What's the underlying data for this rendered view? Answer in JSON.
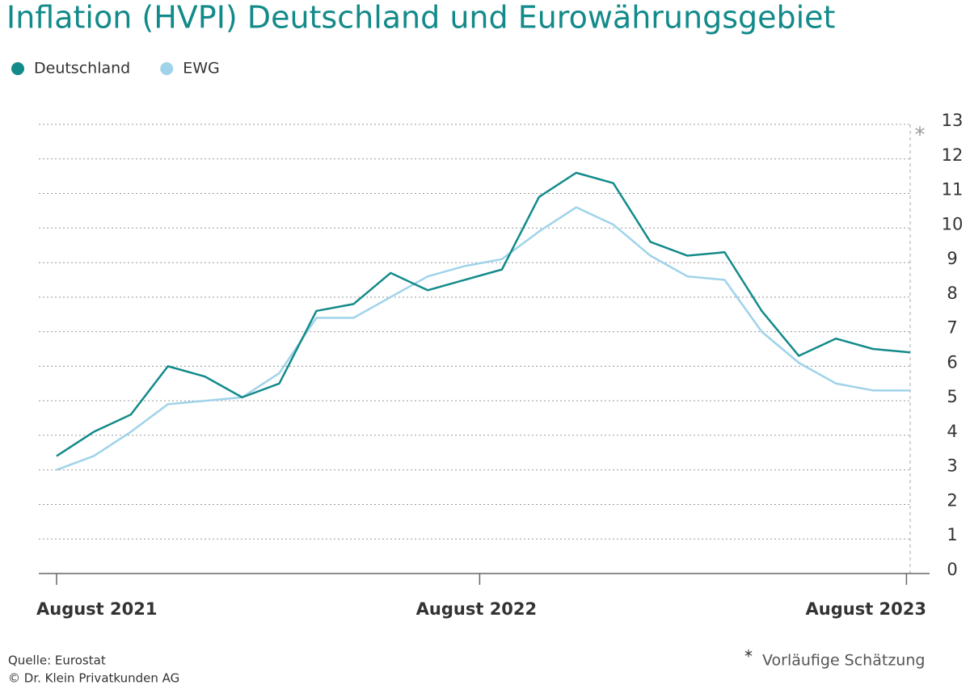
{
  "chart_data": {
    "type": "line",
    "title": "Inflation (HVPI) Deutschland und Eurowährungsgebiet",
    "x": [
      0,
      1,
      2,
      3,
      4,
      5,
      6,
      7,
      8,
      9,
      10,
      11,
      12,
      13,
      14,
      15,
      16,
      17,
      18,
      19,
      20,
      21,
      22,
      23
    ],
    "series": [
      {
        "name": "Deutschland",
        "color": "#138a8a",
        "values": [
          3.4,
          4.1,
          4.6,
          6.0,
          5.7,
          5.1,
          5.5,
          7.6,
          7.8,
          8.7,
          8.2,
          8.5,
          8.8,
          10.9,
          11.6,
          11.3,
          9.6,
          9.2,
          9.3,
          7.6,
          6.3,
          6.8,
          6.5,
          6.4
        ]
      },
      {
        "name": "EWG",
        "color": "#9fd3ea",
        "values": [
          3.0,
          3.4,
          4.1,
          4.9,
          5.0,
          5.1,
          5.8,
          7.4,
          7.4,
          8.0,
          8.6,
          8.9,
          9.1,
          9.9,
          10.6,
          10.1,
          9.2,
          8.6,
          8.5,
          7.0,
          6.1,
          5.5,
          5.3,
          5.3
        ]
      }
    ],
    "xlim": [
      0,
      23
    ],
    "xticks": [
      {
        "value": 0,
        "label": "August 2021"
      },
      {
        "value": 11.4,
        "label": "August 2022"
      },
      {
        "value": 22.9,
        "label": "August 2023"
      }
    ],
    "ylim": [
      0,
      13
    ],
    "yticks": [
      0,
      1,
      2,
      3,
      4,
      5,
      6,
      7,
      8,
      9,
      10,
      11,
      12,
      13
    ],
    "grid": true,
    "legend": "top-left",
    "footnote": {
      "marker": "*",
      "text": "Vorläufige Schätzung"
    },
    "source": [
      "Quelle: Eurostat",
      "© Dr. Klein Privatkunden AG"
    ]
  }
}
